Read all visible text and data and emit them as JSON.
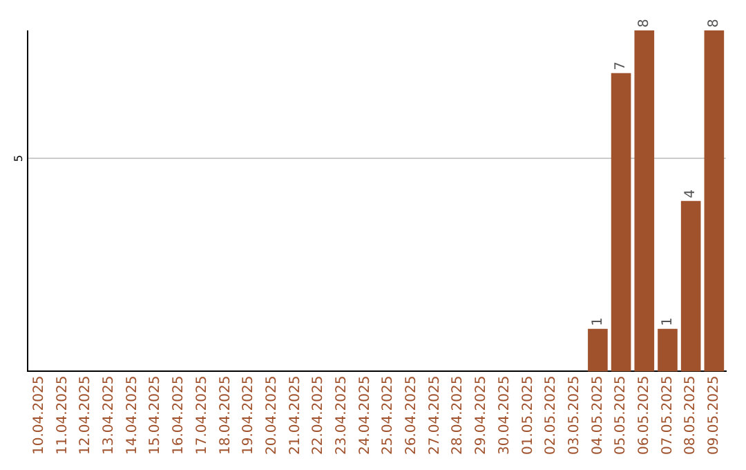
{
  "chart_data": {
    "type": "bar",
    "categories": [
      "10.04.2025",
      "11.04.2025",
      "12.04.2025",
      "13.04.2025",
      "14.04.2025",
      "15.04.2025",
      "16.04.2025",
      "17.04.2025",
      "18.04.2025",
      "19.04.2025",
      "20.04.2025",
      "21.04.2025",
      "22.04.2025",
      "23.04.2025",
      "24.04.2025",
      "25.04.2025",
      "26.04.2025",
      "27.04.2025",
      "28.04.2025",
      "29.04.2025",
      "30.04.2025",
      "01.05.2025",
      "02.05.2025",
      "03.05.2025",
      "04.05.2025",
      "05.05.2025",
      "06.05.2025",
      "07.05.2025",
      "08.05.2025",
      "09.05.2025"
    ],
    "values": [
      null,
      null,
      null,
      null,
      null,
      null,
      null,
      null,
      null,
      null,
      null,
      null,
      null,
      null,
      null,
      null,
      null,
      null,
      null,
      null,
      null,
      null,
      null,
      null,
      1,
      7,
      8,
      1,
      4,
      8
    ],
    "ylim": [
      0,
      8
    ],
    "value_labels": [
      null,
      null,
      null,
      null,
      null,
      null,
      null,
      null,
      null,
      null,
      null,
      null,
      null,
      null,
      null,
      null,
      null,
      null,
      null,
      null,
      null,
      null,
      null,
      null,
      "1",
      "7",
      "8",
      "1",
      "4",
      "8"
    ],
    "color": "#a0522d",
    "ref_lines": [
      {
        "axis": "y",
        "value": 5,
        "label": "5",
        "color": "#cccccc"
      }
    ],
    "legend": false
  }
}
